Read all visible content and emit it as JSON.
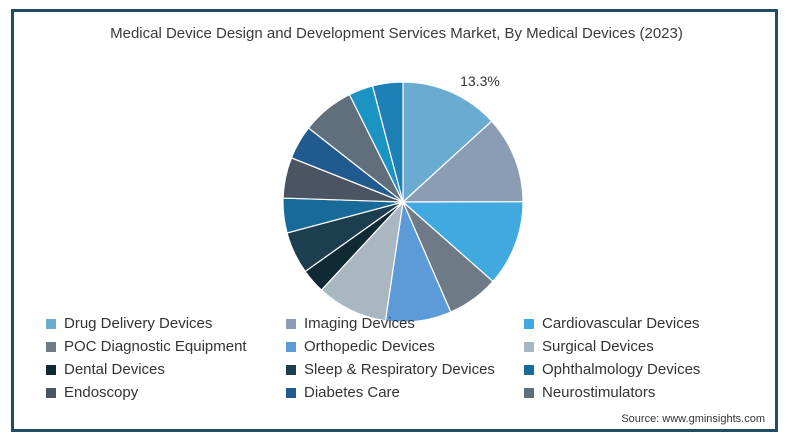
{
  "chart_data": {
    "type": "pie",
    "title": "Medical Device Design and Development Services Market, By Medical Devices (2023)",
    "annotation": "13.3%",
    "legend_position": "bottom",
    "slices": [
      {
        "name": "Drug Delivery Devices",
        "value": 13.3,
        "color": "#6aabd2"
      },
      {
        "name": "Imaging Devices",
        "value": 11.8,
        "color": "#8a9db5"
      },
      {
        "name": "Cardiovascular Devices",
        "value": 11.6,
        "color": "#3fa9e0"
      },
      {
        "name": "POC Diagnostic Equipment",
        "value": 7.0,
        "color": "#6e7b87"
      },
      {
        "name": "Orthopedic Devices",
        "value": 8.9,
        "color": "#5c9bd8"
      },
      {
        "name": "Surgical Devices",
        "value": 9.6,
        "color": "#a9b7c0"
      },
      {
        "name": "Dental Devices",
        "value": 3.3,
        "color": "#0f2a35"
      },
      {
        "name": "Sleep & Respiratory Devices",
        "value": 5.7,
        "color": "#1d3e4e"
      },
      {
        "name": "Ophthalmology Devices",
        "value": 4.7,
        "color": "#186a98"
      },
      {
        "name": "Endoscopy",
        "value": 5.5,
        "color": "#4a5462"
      },
      {
        "name": "Diabetes Care",
        "value": 4.6,
        "color": "#215a8e"
      },
      {
        "name": "Neurostimulators",
        "value": 7.1,
        "color": "#5f6f7b"
      },
      {
        "name": "",
        "value": 3.3,
        "color": "#1b94c4"
      },
      {
        "name": "",
        "value": 4.1,
        "color": "#1f7fb7"
      }
    ]
  },
  "source": "Source: www.gminsights.com"
}
